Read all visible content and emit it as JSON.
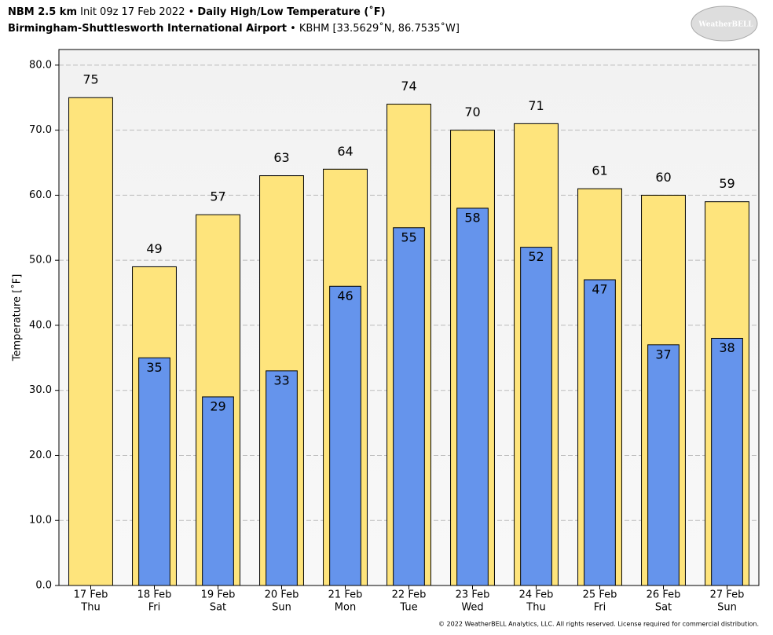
{
  "chart_data": {
    "type": "bar",
    "title_parts": [
      "NBM 2.5 km",
      "Init 09z 17 Feb 2022",
      "•",
      "Daily High/Low Temperature (˚F)"
    ],
    "subtitle_parts": [
      "Birmingham-Shuttlesworth International Airport",
      "• KBHM [33.5629˚N, 86.7535˚W]"
    ],
    "logo": "WeatherBELL",
    "ylabel": "Temperature [˚F]",
    "footer": "© 2022 WeatherBELL Analytics, LLC. All rights reserved. License required for commercial distribution.",
    "categories": [
      "17 Feb",
      "18 Feb",
      "19 Feb",
      "20 Feb",
      "21 Feb",
      "22 Feb",
      "23 Feb",
      "24 Feb",
      "25 Feb",
      "26 Feb",
      "27 Feb"
    ],
    "weekdays": [
      "Thu",
      "Fri",
      "Sat",
      "Sun",
      "Mon",
      "Tue",
      "Wed",
      "Thu",
      "Fri",
      "Sat",
      "Sun"
    ],
    "series": [
      {
        "color": "#fee47c",
        "values": [
          75,
          49,
          57,
          63,
          64,
          74,
          70,
          71,
          61,
          60,
          59
        ]
      },
      {
        "color": "#6594ec",
        "values": [
          null,
          35,
          29,
          33,
          46,
          55,
          58,
          52,
          47,
          37,
          38
        ]
      }
    ],
    "ylim": [
      0,
      82.4
    ],
    "yticks": [
      {
        "value": 0,
        "label": "0.0"
      },
      {
        "value": 10,
        "label": "10.0"
      },
      {
        "value": 20,
        "label": "20.0"
      },
      {
        "value": 30,
        "label": "30.0"
      },
      {
        "value": 40,
        "label": "40.0"
      },
      {
        "value": 50,
        "label": "50.0"
      },
      {
        "value": 60,
        "label": "60.0"
      },
      {
        "value": 70,
        "label": "70.0"
      },
      {
        "value": 80,
        "label": "80.0"
      }
    ],
    "grid": true
  }
}
